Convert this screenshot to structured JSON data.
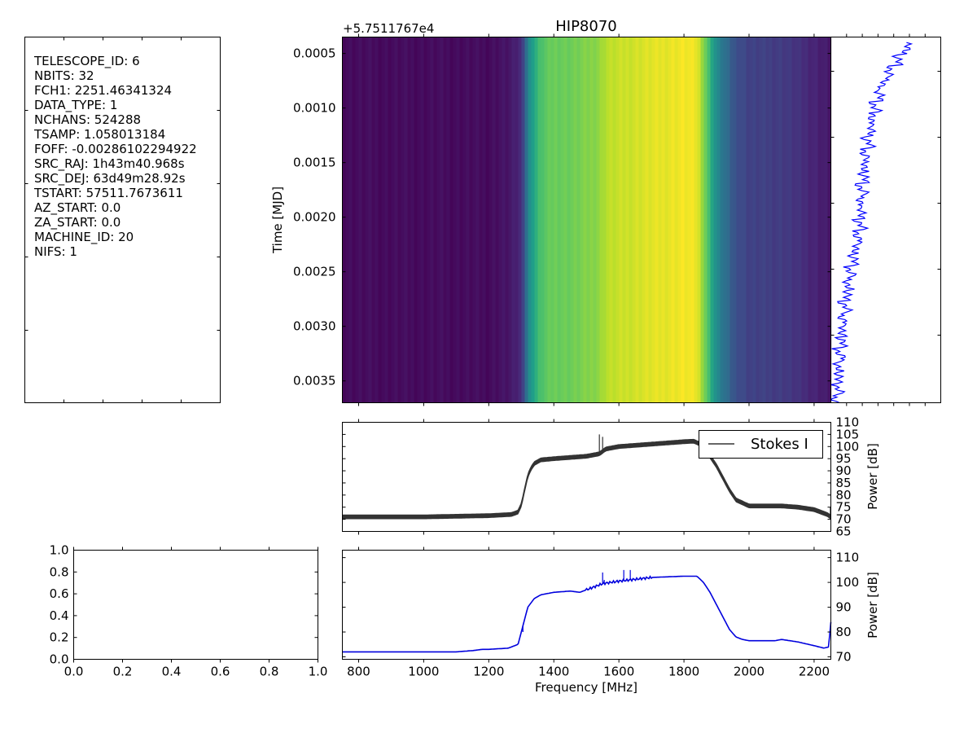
{
  "header_panel": {
    "lines": [
      "TELESCOPE_ID:  6",
      "NBITS:  32",
      "FCH1:  2251.46341324",
      "DATA_TYPE:  1",
      "NCHANS:  524288",
      "TSAMP:  1.058013184",
      "FOFF:  -0.00286102294922",
      "SRC_RAJ:  1h43m40.968s",
      "SRC_DEJ:  63d49m28.92s",
      "TSTART:  57511.7673611",
      "AZ_START:  0.0",
      "ZA_START:  0.0",
      "MACHINE_ID:  20",
      "NIFS:  1"
    ]
  },
  "colors": {
    "spectrum_line": "#333333",
    "bandpass_line": "#0000dd",
    "timeseries_line": "#0000ff",
    "legend_line": "#333333"
  },
  "chart_data": [
    {
      "id": "waterfall",
      "type": "heatmap",
      "title": "HIP8070",
      "ylabel": "Time [MJD]",
      "offset_label": "+5.7511767e4",
      "ylim": [
        0.0037,
        0.00035
      ],
      "yticks": [
        {
          "v": 0.0005,
          "label": "0.0005"
        },
        {
          "v": 0.001,
          "label": "0.0010"
        },
        {
          "v": 0.0015,
          "label": "0.0015"
        },
        {
          "v": 0.002,
          "label": "0.0020"
        },
        {
          "v": 0.0025,
          "label": "0.0025"
        },
        {
          "v": 0.003,
          "label": "0.0030"
        },
        {
          "v": 0.0035,
          "label": "0.0035"
        }
      ],
      "xlim": [
        750,
        2251.5
      ],
      "xticks": [
        800,
        1000,
        1200,
        1400,
        1600,
        1800,
        2000,
        2200
      ],
      "colormap": "viridis",
      "profile_freq": [
        750,
        1200,
        1270,
        1300,
        1310,
        1330,
        1360,
        1400,
        1450,
        1500,
        1540,
        1560,
        1620,
        1700,
        1800,
        1840,
        1860,
        1880,
        1900,
        1950,
        2000,
        2100,
        2200,
        2251.5
      ],
      "profile_db": [
        71,
        71,
        72,
        74,
        80,
        88,
        94,
        96,
        96,
        97,
        98,
        100,
        101,
        102,
        103,
        102.5,
        98,
        92,
        86,
        79,
        76.5,
        76,
        73.5,
        72
      ]
    },
    {
      "id": "timeseries",
      "type": "line",
      "xlim": [
        0,
        1
      ],
      "ylim": [
        0.0037,
        0.00035
      ],
      "time": [
        0.0004,
        0.0006,
        0.0008,
        0.001,
        0.0012,
        0.0014,
        0.0016,
        0.0018,
        0.002,
        0.0022,
        0.0024,
        0.0026,
        0.0028,
        0.003,
        0.0032,
        0.0034,
        0.0036,
        0.0037
      ],
      "power": [
        0.72,
        0.58,
        0.46,
        0.4,
        0.36,
        0.32,
        0.3,
        0.28,
        0.27,
        0.25,
        0.2,
        0.16,
        0.13,
        0.11,
        0.09,
        0.07,
        0.06,
        0.05
      ]
    },
    {
      "id": "spectrum",
      "type": "line",
      "ylabel": "Power [dB]",
      "xlim": [
        750,
        2251.5
      ],
      "ylim": [
        65,
        110
      ],
      "yticks": [
        65,
        70,
        75,
        80,
        85,
        90,
        95,
        100,
        105,
        110
      ],
      "legend": "Stokes I",
      "legend_loc": "top-right",
      "series": [
        {
          "name": "Stokes I",
          "x": [
            750,
            1000,
            1200,
            1270,
            1290,
            1300,
            1310,
            1320,
            1330,
            1340,
            1360,
            1400,
            1450,
            1500,
            1540,
            1560,
            1600,
            1650,
            1700,
            1800,
            1830,
            1850,
            1870,
            1900,
            1920,
            1940,
            1960,
            2000,
            2100,
            2150,
            2200,
            2240,
            2251
          ],
          "y": [
            71,
            71,
            71.5,
            72,
            73,
            76,
            82,
            88,
            91,
            93,
            94.5,
            95,
            95.5,
            96,
            97,
            99,
            100,
            100.5,
            101,
            102,
            102.2,
            101,
            98,
            92,
            87,
            82,
            78,
            75.5,
            75.5,
            75,
            74,
            72,
            71
          ]
        }
      ],
      "spikes": [
        {
          "x": 1540,
          "y": 105
        },
        {
          "x": 1550,
          "y": 104
        },
        {
          "x": 1025,
          "y": 72
        },
        {
          "x": 1650,
          "y": 101
        },
        {
          "x": 2100,
          "y": 76
        },
        {
          "x": 2250,
          "y": 75
        }
      ]
    },
    {
      "id": "empty",
      "type": "line",
      "xlim": [
        0,
        1
      ],
      "ylim": [
        0,
        1
      ],
      "xticks": [
        {
          "v": 0,
          "label": "0.0"
        },
        {
          "v": 0.2,
          "label": "0.2"
        },
        {
          "v": 0.4,
          "label": "0.4"
        },
        {
          "v": 0.6,
          "label": "0.6"
        },
        {
          "v": 0.8,
          "label": "0.8"
        },
        {
          "v": 1,
          "label": "1.0"
        }
      ],
      "yticks": [
        {
          "v": 0,
          "label": "0.0"
        },
        {
          "v": 0.2,
          "label": "0.2"
        },
        {
          "v": 0.4,
          "label": "0.4"
        },
        {
          "v": 0.6,
          "label": "0.6"
        },
        {
          "v": 0.8,
          "label": "0.8"
        },
        {
          "v": 1,
          "label": "1.0"
        }
      ]
    },
    {
      "id": "bandpass",
      "type": "line",
      "xlabel": "Frequency [MHz]",
      "ylabel": "Power [dB]",
      "xlim": [
        750,
        2251.5
      ],
      "ylim": [
        69,
        113
      ],
      "xticks": [
        800,
        1000,
        1200,
        1400,
        1600,
        1800,
        2000,
        2200
      ],
      "yticks": [
        70,
        80,
        90,
        100,
        110
      ],
      "series": [
        {
          "x": [
            750,
            900,
            1100,
            1150,
            1180,
            1200,
            1260,
            1290,
            1300,
            1310,
            1320,
            1340,
            1360,
            1400,
            1450,
            1480,
            1500,
            1550,
            1600,
            1700,
            1800,
            1840,
            1860,
            1880,
            1900,
            1920,
            1940,
            1960,
            1980,
            2000,
            2080,
            2100,
            2150,
            2200,
            2230,
            2245,
            2251
          ],
          "y": [
            72,
            72,
            72,
            72.5,
            73,
            73,
            73.5,
            75,
            80,
            85,
            90,
            93.5,
            95,
            96,
            96.5,
            96,
            97,
            99.5,
            100.5,
            102,
            102.5,
            102.5,
            100,
            96,
            91,
            86,
            81,
            78,
            77,
            76.5,
            76.5,
            77,
            76,
            74.5,
            73.5,
            74,
            84
          ]
        }
      ],
      "spikes": [
        {
          "x": 1550,
          "y": 104
        },
        {
          "x": 1555,
          "y": 101
        },
        {
          "x": 1615,
          "y": 105
        },
        {
          "x": 1635,
          "y": 105
        },
        {
          "x": 1305,
          "y": 80
        }
      ]
    }
  ]
}
